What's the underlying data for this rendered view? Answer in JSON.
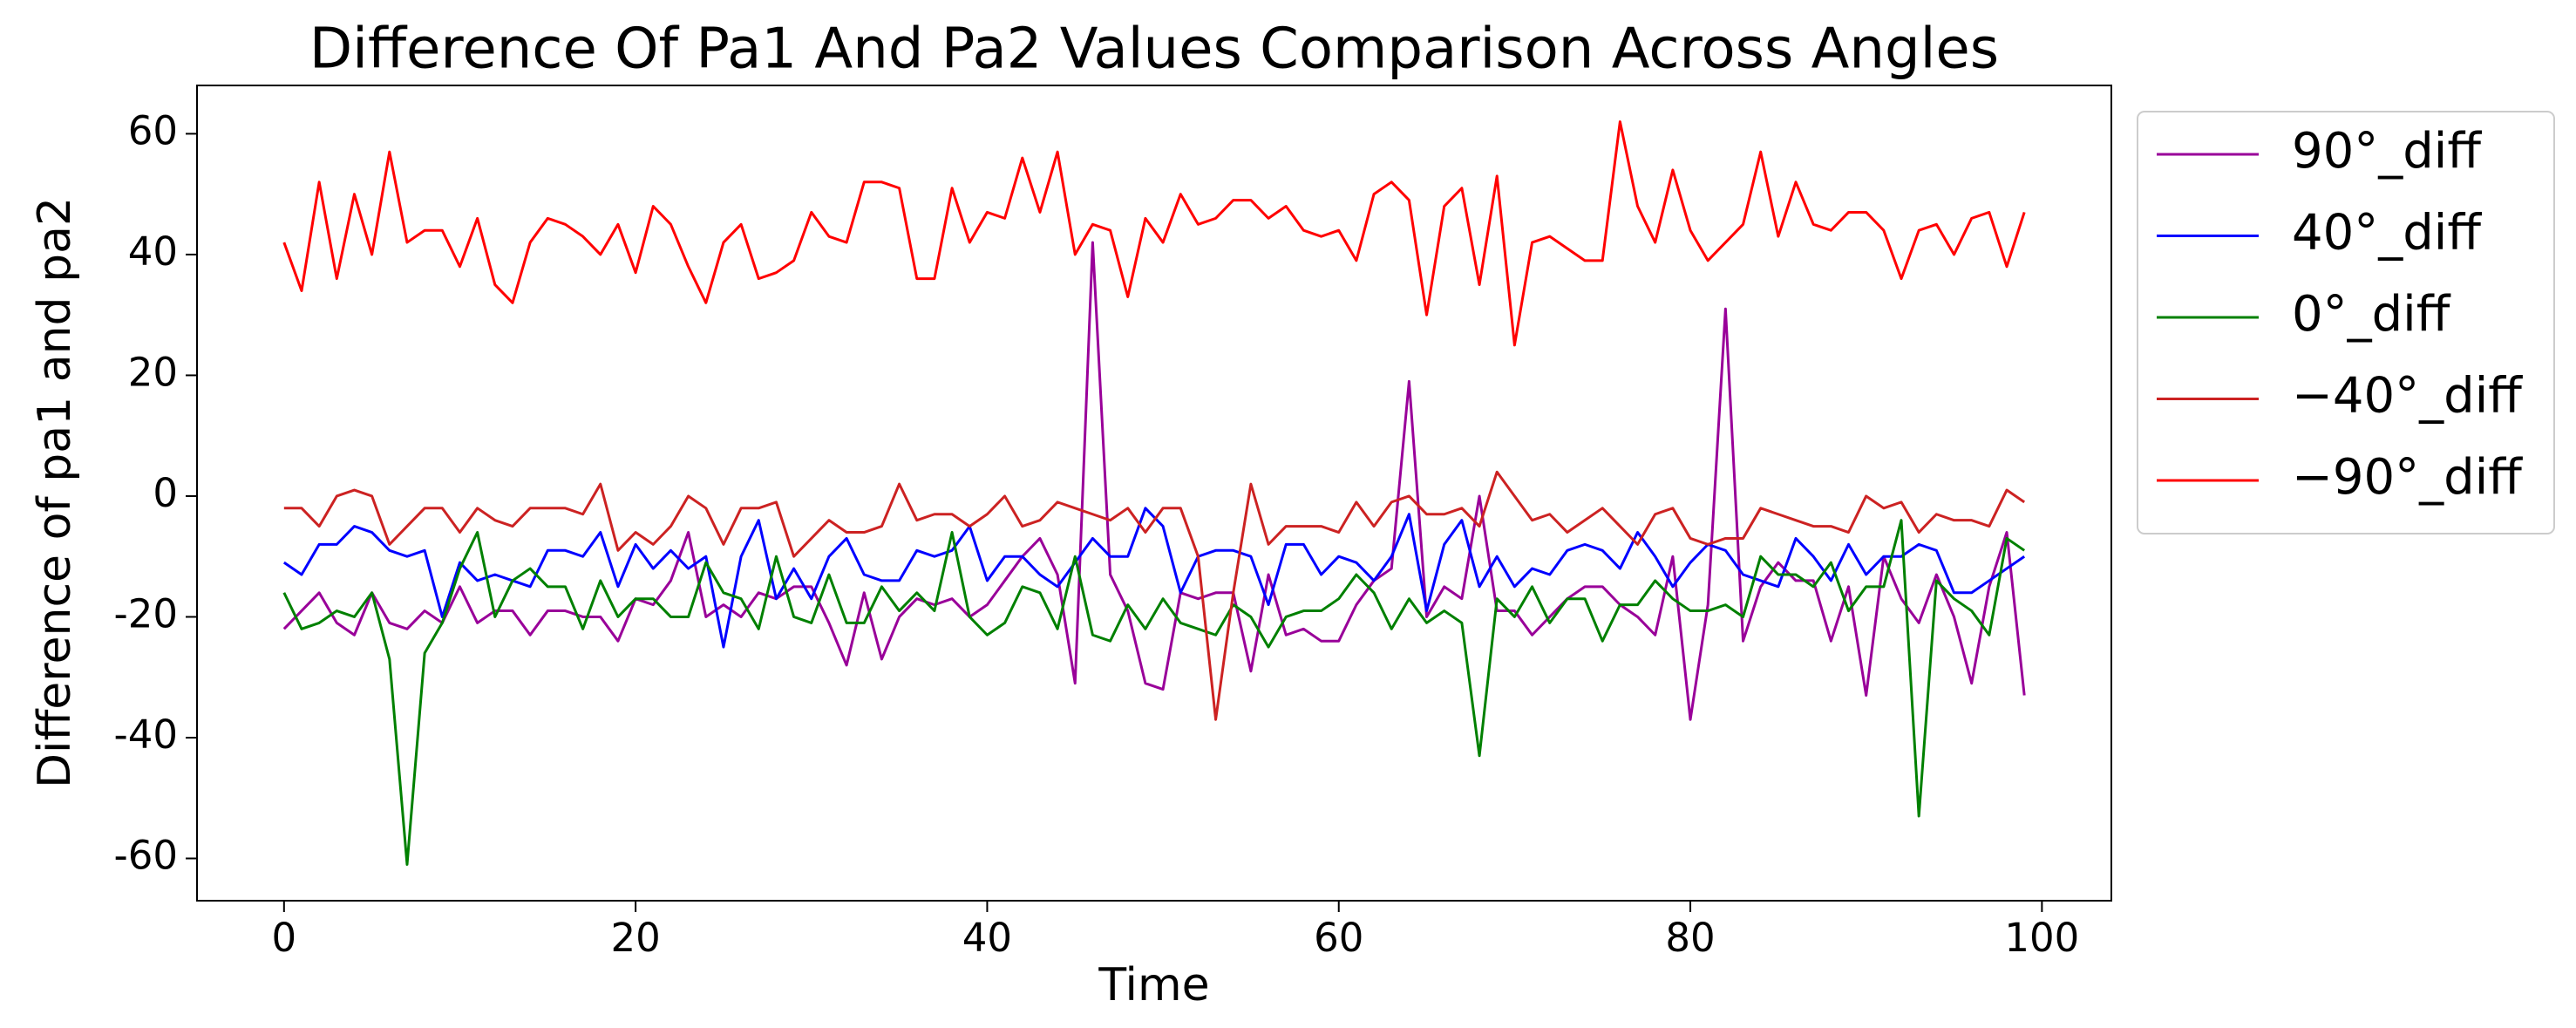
{
  "chart_data": {
    "type": "line",
    "title": "Difference Of Pa1 And Pa2 Values Comparison Across Angles",
    "xlabel": "Time",
    "ylabel": "Difference of pa1 and pa2",
    "x": [
      0,
      1,
      2,
      3,
      4,
      5,
      6,
      7,
      8,
      9,
      10,
      11,
      12,
      13,
      14,
      15,
      16,
      17,
      18,
      19,
      20,
      21,
      22,
      23,
      24,
      25,
      26,
      27,
      28,
      29,
      30,
      31,
      32,
      33,
      34,
      35,
      36,
      37,
      38,
      39,
      40,
      41,
      42,
      43,
      44,
      45,
      46,
      47,
      48,
      49,
      50,
      51,
      52,
      53,
      54,
      55,
      56,
      57,
      58,
      59,
      60,
      61,
      62,
      63,
      64,
      65,
      66,
      67,
      68,
      69,
      70,
      71,
      72,
      73,
      74,
      75,
      76,
      77,
      78,
      79,
      80,
      81,
      82,
      83,
      84,
      85,
      86,
      87,
      88,
      89,
      90,
      91,
      92,
      93,
      94,
      95,
      96,
      97,
      98,
      99
    ],
    "xlim": [
      -4.95,
      103.95
    ],
    "xticks": [
      0,
      20,
      40,
      60,
      80,
      100
    ],
    "ylim": [
      -67,
      68
    ],
    "yticks": [
      -60,
      -40,
      -20,
      0,
      20,
      40,
      60
    ],
    "series": [
      {
        "name": "90°_diff",
        "color": "#990099",
        "values": [
          -22,
          -19,
          -16,
          -21,
          -23,
          -16,
          -21,
          -22,
          -19,
          -21,
          -15,
          -21,
          -19,
          -19,
          -23,
          -19,
          -19,
          -20,
          -20,
          -24,
          -17,
          -18,
          -14,
          -6,
          -20,
          -18,
          -20,
          -16,
          -17,
          -15,
          -15,
          -21,
          -28,
          -16,
          -27,
          -20,
          -17,
          -18,
          -17,
          -20,
          -18,
          -14,
          -10,
          -7,
          -13,
          -31,
          42,
          -13,
          -19,
          -31,
          -32,
          -16,
          -17,
          -16,
          -16,
          -29,
          -13,
          -23,
          -22,
          -24,
          -24,
          -18,
          -14,
          -12,
          19,
          -20,
          -15,
          -17,
          0,
          -19,
          -19,
          -23,
          -20,
          -17,
          -15,
          -15,
          -18,
          -20,
          -23,
          -10,
          -37,
          -18,
          31,
          -24,
          -15,
          -11,
          -14,
          -14,
          -24,
          -15,
          -33,
          -10,
          -17,
          -21,
          -13,
          -20,
          -31,
          -15,
          -6,
          -33
        ]
      },
      {
        "name": "40°_diff",
        "color": "#0000ff",
        "values": [
          -11,
          -13,
          -8,
          -8,
          -5,
          -6,
          -9,
          -10,
          -9,
          -20,
          -11,
          -14,
          -13,
          -14,
          -15,
          -9,
          -9,
          -10,
          -6,
          -15,
          -8,
          -12,
          -9,
          -12,
          -10,
          -25,
          -10,
          -4,
          -17,
          -12,
          -17,
          -10,
          -7,
          -13,
          -14,
          -14,
          -9,
          -10,
          -9,
          -5,
          -14,
          -10,
          -10,
          -13,
          -15,
          -11,
          -7,
          -10,
          -10,
          -2,
          -5,
          -16,
          -10,
          -9,
          -9,
          -10,
          -18,
          -8,
          -8,
          -13,
          -10,
          -11,
          -14,
          -10,
          -3,
          -19,
          -8,
          -4,
          -15,
          -10,
          -15,
          -12,
          -13,
          -9,
          -8,
          -9,
          -12,
          -6,
          -10,
          -15,
          -11,
          -8,
          -9,
          -13,
          -14,
          -15,
          -7,
          -10,
          -14,
          -8,
          -13,
          -10,
          -10,
          -8,
          -9,
          -16,
          -16,
          -14,
          -12,
          -10
        ]
      },
      {
        "name": "0°_diff",
        "color": "#008000",
        "values": [
          -16,
          -22,
          -21,
          -19,
          -20,
          -16,
          -27,
          -61,
          -26,
          -21,
          -12,
          -6,
          -20,
          -14,
          -12,
          -15,
          -15,
          -22,
          -14,
          -20,
          -17,
          -17,
          -20,
          -20,
          -11,
          -16,
          -17,
          -22,
          -10,
          -20,
          -21,
          -13,
          -21,
          -21,
          -15,
          -19,
          -16,
          -19,
          -6,
          -20,
          -23,
          -21,
          -15,
          -16,
          -22,
          -10,
          -23,
          -24,
          -18,
          -22,
          -17,
          -21,
          -22,
          -23,
          -18,
          -20,
          -25,
          -20,
          -19,
          -19,
          -17,
          -13,
          -16,
          -22,
          -17,
          -21,
          -19,
          -21,
          -43,
          -17,
          -20,
          -15,
          -21,
          -17,
          -17,
          -24,
          -18,
          -18,
          -14,
          -17,
          -19,
          -19,
          -18,
          -20,
          -10,
          -13,
          -13,
          -15,
          -11,
          -19,
          -15,
          -15,
          -4,
          -53,
          -14,
          -17,
          -19,
          -23,
          -7,
          -9
        ]
      },
      {
        "name": "−40°_diff",
        "color": "#cc2222",
        "values": [
          -2,
          -2,
          -5,
          0,
          1,
          0,
          -8,
          -5,
          -2,
          -2,
          -6,
          -2,
          -4,
          -5,
          -2,
          -2,
          -2,
          -3,
          2,
          -9,
          -6,
          -8,
          -5,
          0,
          -2,
          -8,
          -2,
          -2,
          -1,
          -10,
          -7,
          -4,
          -6,
          -6,
          -5,
          2,
          -4,
          -3,
          -3,
          -5,
          -3,
          0,
          -5,
          -4,
          -1,
          -2,
          -3,
          -4,
          -2,
          -6,
          -2,
          -2,
          -10,
          -37,
          -16,
          2,
          -8,
          -5,
          -5,
          -5,
          -6,
          -1,
          -5,
          -1,
          0,
          -3,
          -3,
          -2,
          -5,
          4,
          0,
          -4,
          -3,
          -6,
          -4,
          -2,
          -5,
          -8,
          -3,
          -2,
          -7,
          -8,
          -7,
          -7,
          -2,
          -3,
          -4,
          -5,
          -5,
          -6,
          0,
          -2,
          -1,
          -6,
          -3,
          -4,
          -4,
          -5,
          1,
          -1
        ]
      },
      {
        "name": "−90°_diff",
        "color": "#ff0000",
        "values": [
          42,
          34,
          52,
          36,
          50,
          40,
          57,
          42,
          44,
          44,
          38,
          46,
          35,
          32,
          42,
          46,
          45,
          43,
          40,
          45,
          37,
          48,
          45,
          38,
          32,
          42,
          45,
          36,
          37,
          39,
          47,
          43,
          42,
          52,
          52,
          51,
          36,
          36,
          51,
          42,
          47,
          46,
          56,
          47,
          57,
          40,
          45,
          44,
          33,
          46,
          42,
          50,
          45,
          46,
          49,
          49,
          46,
          48,
          44,
          43,
          44,
          39,
          50,
          52,
          49,
          30,
          48,
          51,
          35,
          53,
          25,
          42,
          43,
          41,
          39,
          39,
          62,
          48,
          42,
          54,
          44,
          39,
          42,
          45,
          57,
          43,
          52,
          45,
          44,
          47,
          47,
          44,
          36,
          44,
          45,
          40,
          46,
          47,
          38,
          47
        ]
      }
    ]
  }
}
